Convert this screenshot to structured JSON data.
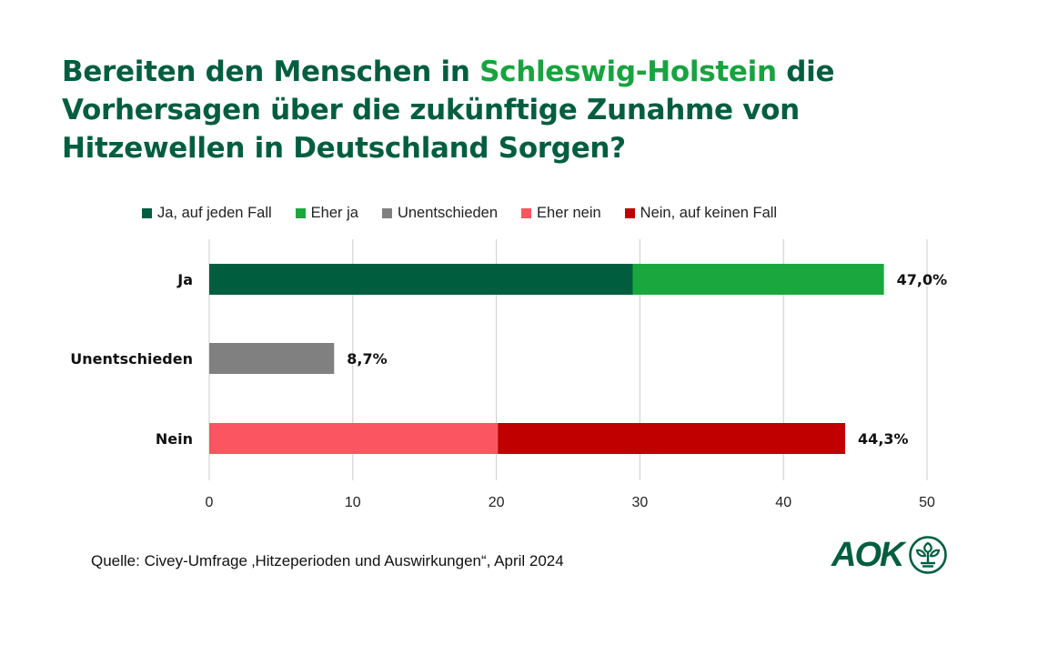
{
  "title": {
    "part1": "Bereiten den Menschen in ",
    "highlight": "Schleswig-Holstein",
    "part2": " die Vorhersagen über die zukünftige Zunahme von Hitzewellen in Deutschland Sorgen?"
  },
  "source": "Quelle: Civey-Umfrage ‚Hitzeperioden und Auswirkungen“, April 2024",
  "logo": {
    "text": "AOK",
    "emblem": "tree-circle-icon"
  },
  "colors": {
    "title": "#005e3f",
    "highlight": "#18a33f",
    "grid": "#cccccc"
  },
  "chart_data": {
    "type": "bar",
    "orientation": "horizontal",
    "stacked": true,
    "title": "Bereiten den Menschen in Schleswig-Holstein die Vorhersagen über die zukünftige Zunahme von Hitzewellen in Deutschland Sorgen?",
    "categories": [
      "Ja",
      "Unentschieden",
      "Nein"
    ],
    "series": [
      {
        "name": "Ja, auf jeden Fall",
        "color": "#005e3f",
        "values": [
          29.5,
          0,
          0
        ]
      },
      {
        "name": "Eher ja",
        "color": "#1aa83e",
        "values": [
          17.5,
          0,
          0
        ]
      },
      {
        "name": "Unentschieden",
        "color": "#808080",
        "values": [
          0,
          8.7,
          0
        ]
      },
      {
        "name": "Eher nein",
        "color": "#fa5560",
        "values": [
          0,
          0,
          20.1
        ]
      },
      {
        "name": "Nein, auf keinen Fall",
        "color": "#c00000",
        "values": [
          0,
          0,
          24.2
        ]
      }
    ],
    "totals": [
      "47,0%",
      "8,7%",
      "44,3%"
    ],
    "total_values": [
      47.0,
      8.7,
      44.3
    ],
    "xlim": [
      0,
      50
    ],
    "xticks": [
      0,
      10,
      20,
      30,
      40,
      50
    ],
    "xtick_labels": [
      "0",
      "10",
      "20",
      "30",
      "40",
      "50"
    ],
    "xlabel": "",
    "ylabel": "",
    "grid": true,
    "legend_position": "top"
  }
}
